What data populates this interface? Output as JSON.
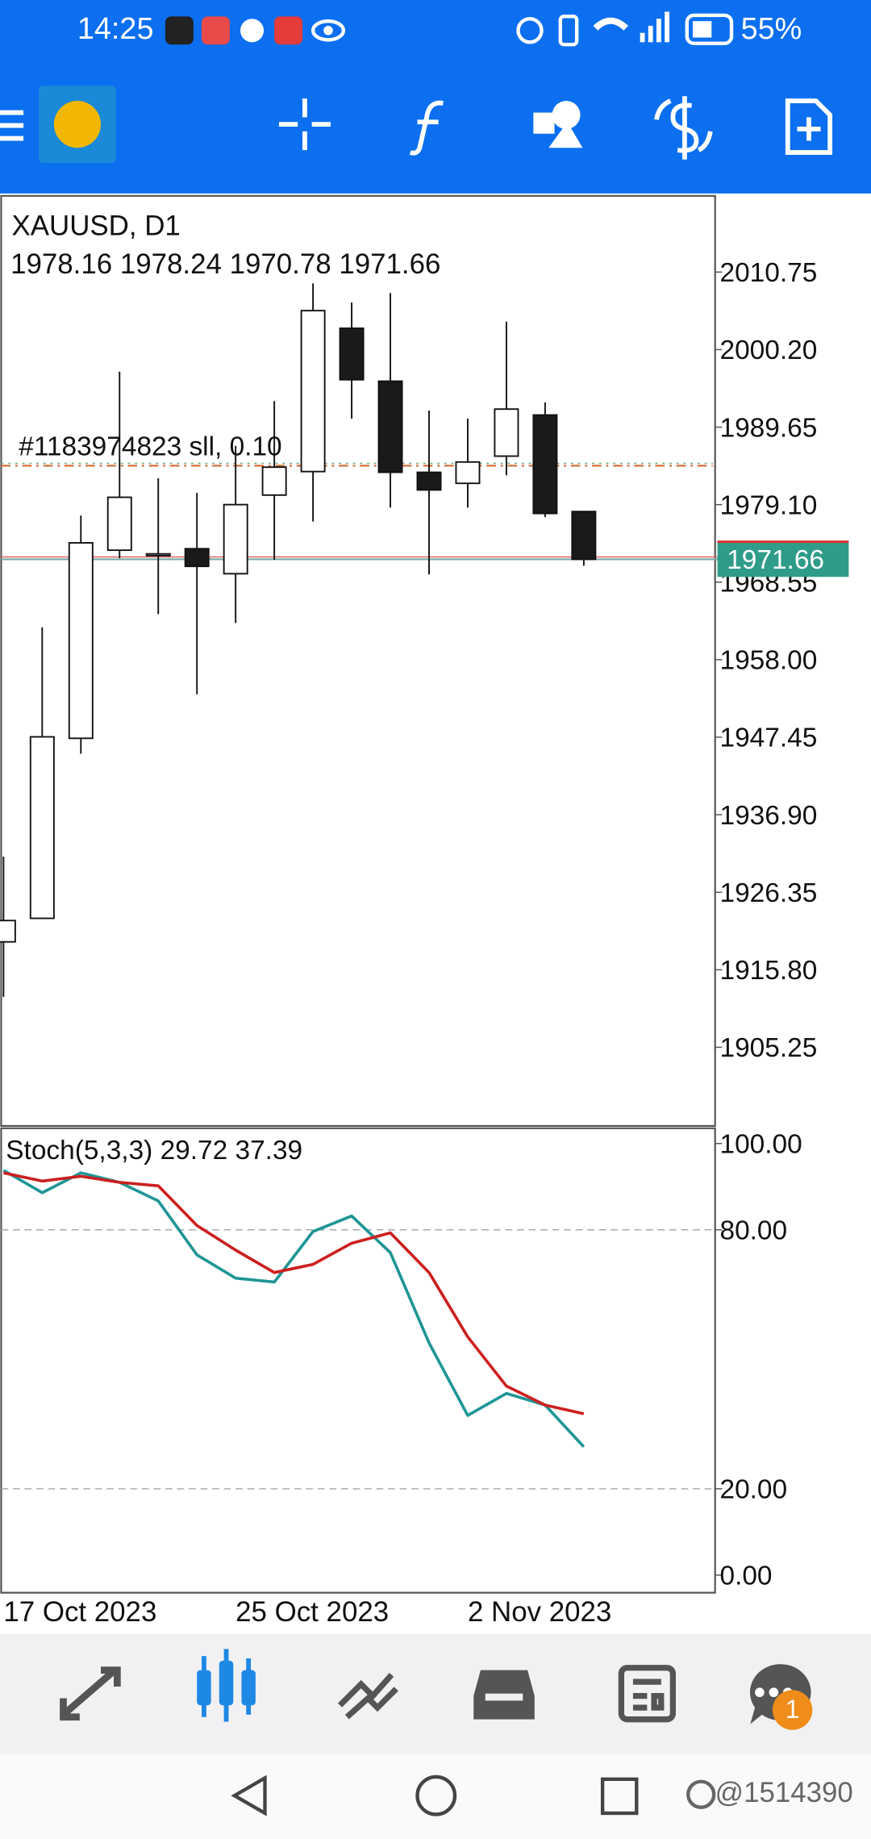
{
  "status_bar": {
    "time": "14:25",
    "battery": "55%"
  },
  "chart_data": [
    {
      "type": "candlestick",
      "title": "XAUUSD, D1",
      "x": [
        "17 Oct 2023",
        null,
        null,
        null,
        null,
        null,
        "25 Oct 2023",
        null,
        null,
        null,
        null,
        null,
        "2 Nov 2023",
        null,
        null,
        null
      ],
      "open": [
        1919.6,
        1922.8,
        1947.3,
        1972.9,
        1972.2,
        1973.1,
        1969.7,
        1980.4,
        1983.6,
        2003.1,
        1995.9,
        1983.5,
        1982.0,
        1985.7,
        1991.3,
        1978.16
      ],
      "high": [
        1931.2,
        1962.4,
        1977.6,
        1997.2,
        1982.7,
        1980.7,
        1987.1,
        1993.2,
        2009.2,
        2006.6,
        2007.9,
        1991.9,
        1990.8,
        2004.0,
        1993.0,
        1978.24
      ],
      "low": [
        1912.1,
        1922.8,
        1945.2,
        1971.8,
        1964.2,
        1953.3,
        1963.0,
        1971.6,
        1976.8,
        1990.8,
        1978.7,
        1969.6,
        1978.7,
        1983.1,
        1977.4,
        1970.78
      ],
      "close": [
        1922.5,
        1947.5,
        1973.9,
        1980.1,
        1972.4,
        1970.7,
        1979.1,
        1984.2,
        2005.5,
        1996.1,
        1983.5,
        1981.1,
        1984.9,
        1992.1,
        1977.9,
        1971.66
      ],
      "up_color": "#ffffff",
      "down_color": "#1a1a1a",
      "ylim": [
        1894.55,
        2021.12
      ],
      "yticks": [
        2010.75,
        {
          "value": 2000.2,
          "label": "2000.20"
        },
        1989.65,
        {
          "value": 1979.1,
          "label": "1979.10"
        },
        1968.55,
        {
          "value": 1958,
          "label": "1958.00"
        },
        1947.45,
        {
          "value": 1936.9,
          "label": "1936.90"
        },
        1926.35,
        {
          "value": 1915.8,
          "label": "1915.80"
        },
        1905.25
      ],
      "order_line": {
        "label": "#1183974823 sll, 0.10",
        "price": 1984.4,
        "color": "#d4703a"
      },
      "price_tag_color": "#2f9c8a"
    },
    {
      "type": "line",
      "title": "Stoch(5,3,3)",
      "series": [
        {
          "color": "#1f9596",
          "values": [
            93.8,
            88.6,
            93.2,
            91.0,
            86.7,
            74.2,
            68.8,
            67.9,
            79.6,
            83.2,
            74.7,
            53.8,
            37.0,
            42.1,
            39.4,
            29.72
          ]
        },
        {
          "color": "#cc1f1f",
          "values": [
            93.2,
            91.3,
            92.4,
            91.0,
            90.2,
            81.0,
            75.3,
            70.1,
            72.0,
            76.9,
            79.3,
            70.1,
            55.2,
            43.8,
            39.4,
            37.39
          ]
        }
      ],
      "ylim": [
        -4.08,
        103.53
      ],
      "yticks": [
        {
          "value": 100,
          "label": "100.00"
        },
        {
          "value": 80,
          "label": "80.00"
        },
        {
          "value": 20,
          "label": "20.00"
        },
        {
          "value": 0,
          "label": "0.00"
        }
      ],
      "levels": [
        80,
        20
      ]
    }
  ],
  "bottom_nav": {
    "badge": "1"
  },
  "watermark": "@1514390"
}
